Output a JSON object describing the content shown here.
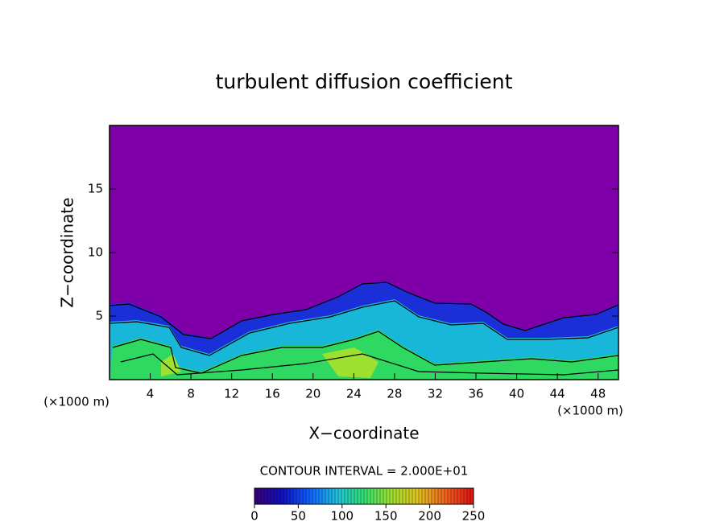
{
  "chart_data": {
    "type": "contour",
    "title": "turbulent diffusion coefficient",
    "x_label": "X−coordinate",
    "y_label": "Z−coordinate",
    "x_unit_left": "(×1000 m)",
    "x_unit_right": "(×1000 m)",
    "xlim": [
      0,
      50
    ],
    "xticks": [
      4,
      8,
      12,
      16,
      20,
      24,
      28,
      32,
      36,
      40,
      44,
      48
    ],
    "ylim": [
      0,
      20
    ],
    "yticks": [
      5,
      10,
      15
    ],
    "field_color": "#7f00a8",
    "contour_interval_label": "CONTOUR INTERVAL = 2.000E+01",
    "colorbar": {
      "lim": [
        0,
        250
      ],
      "ticks": [
        0,
        50,
        100,
        150,
        200,
        250
      ],
      "colors": [
        "#3a007a",
        "#1010c0",
        "#1060ff",
        "#20c0e0",
        "#30e070",
        "#a0e030",
        "#e0c020",
        "#f06020",
        "#e01010"
      ]
    }
  }
}
